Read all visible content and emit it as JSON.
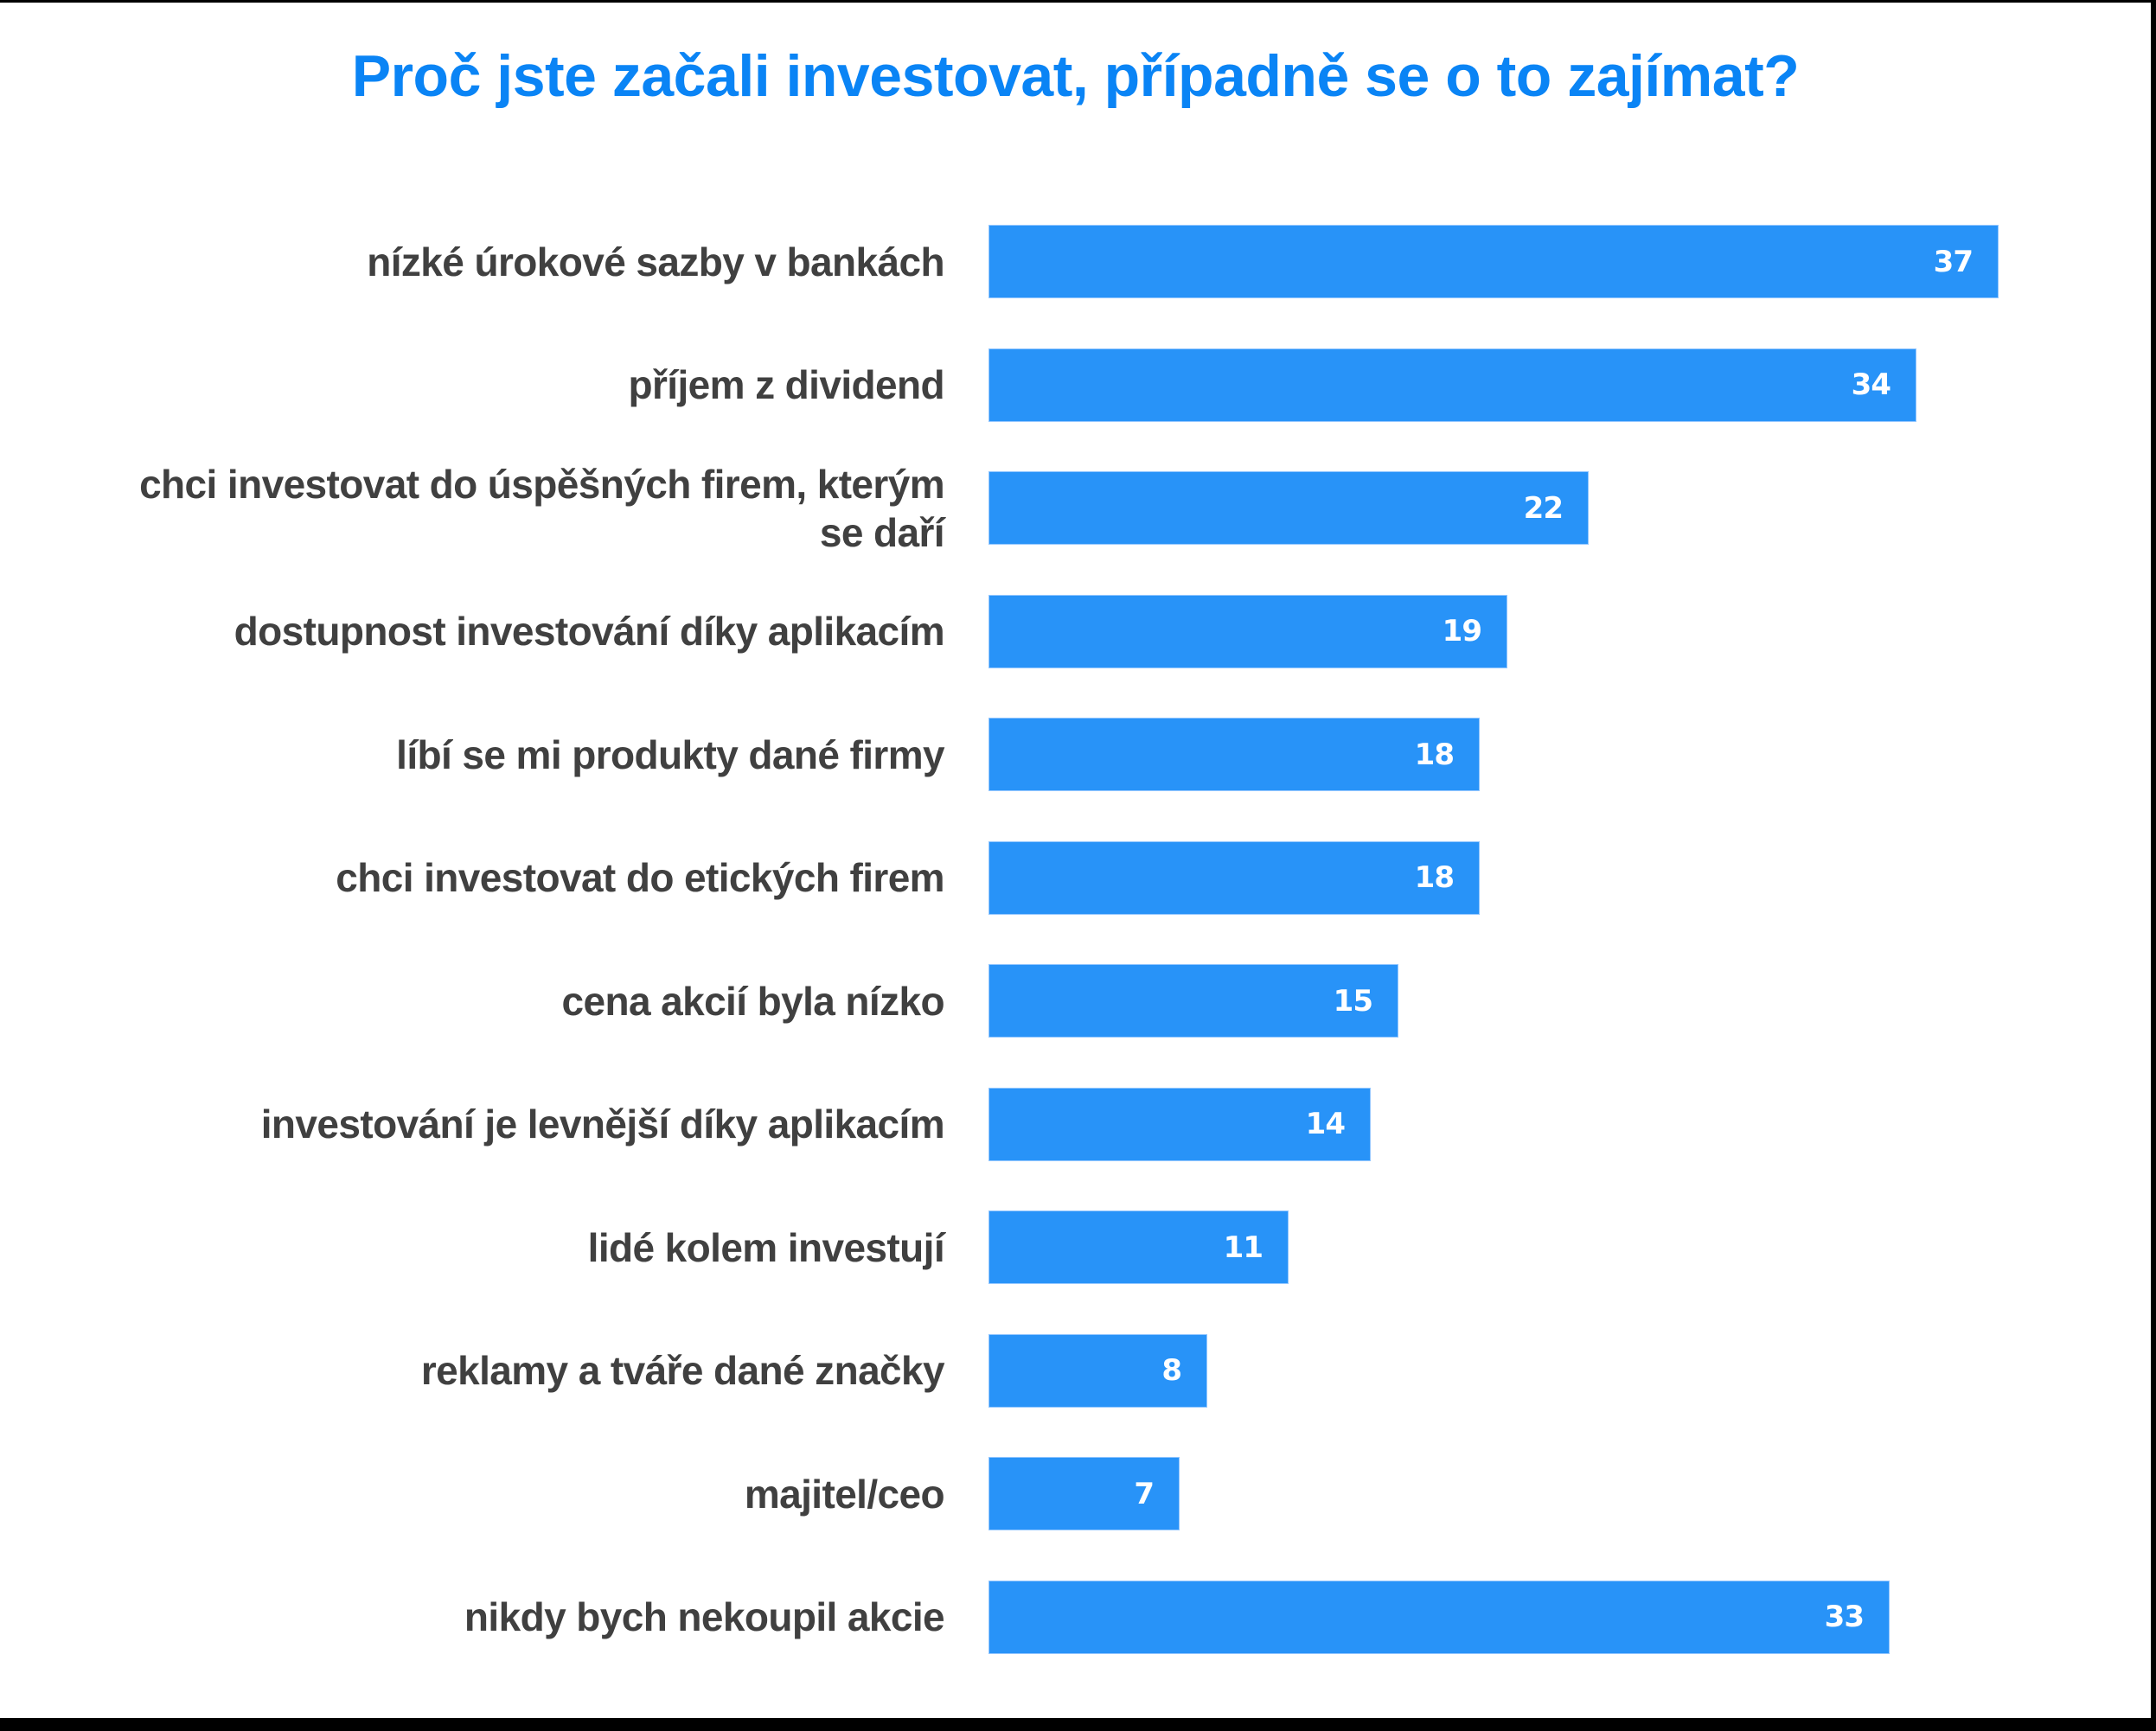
{
  "colors": {
    "title": "#0a84f5",
    "label": "#404040",
    "bar": "#2893f8",
    "value_text": "#ffffff",
    "background": "#ffffff",
    "frame": "#000000"
  },
  "chart": {
    "title": "Proč jste začali investovat, případně se o to zajímat?"
  },
  "rows": [
    {
      "label_lines": [
        "nízké úrokové sazby v bankách"
      ],
      "value": 37,
      "value_label": "37"
    },
    {
      "label_lines": [
        "příjem z dividend"
      ],
      "value": 34,
      "value_label": "34"
    },
    {
      "label_lines": [
        "chci investovat do úspěšných firem, kterým",
        "se daří"
      ],
      "value": 22,
      "value_label": "22"
    },
    {
      "label_lines": [
        "dostupnost investování díky aplikacím"
      ],
      "value": 19,
      "value_label": "19"
    },
    {
      "label_lines": [
        "líbí se mi produkty dané firmy"
      ],
      "value": 18,
      "value_label": "18"
    },
    {
      "label_lines": [
        "chci investovat do etických firem"
      ],
      "value": 18,
      "value_label": "18"
    },
    {
      "label_lines": [
        "cena akcií byla nízko"
      ],
      "value": 15,
      "value_label": "15"
    },
    {
      "label_lines": [
        "investování je levnější díky aplikacím"
      ],
      "value": 14,
      "value_label": "14"
    },
    {
      "label_lines": [
        "lidé kolem investují"
      ],
      "value": 11,
      "value_label": "11"
    },
    {
      "label_lines": [
        "reklamy a tváře dané značky"
      ],
      "value": 8,
      "value_label": "8"
    },
    {
      "label_lines": [
        "majitel/ceo"
      ],
      "value": 7,
      "value_label": "7"
    },
    {
      "label_lines": [
        "nikdy bych nekoupil akcie"
      ],
      "value": 33,
      "value_label": "33"
    }
  ],
  "chart_data": {
    "type": "bar",
    "orientation": "horizontal",
    "title": "Proč jste začali investovat, případně se o to zajímat?",
    "categories": [
      "nízké úrokové sazby v bankách",
      "příjem z dividend",
      "chci investovat do úspěšných firem, kterým se daří",
      "dostupnost investování díky aplikacím",
      "líbí se mi produkty dané firmy",
      "chci investovat do etických firem",
      "cena akcií byla nízko",
      "investování je levnější díky aplikacím",
      "lidé kolem investují",
      "reklamy a tváře dané značky",
      "majitel/ceo",
      "nikdy bych nekoupil akcie"
    ],
    "values": [
      37,
      34,
      22,
      19,
      18,
      18,
      15,
      14,
      11,
      8,
      7,
      33
    ],
    "xlabel": "",
    "ylabel": "",
    "xlim": [
      0,
      37
    ],
    "grid": false,
    "legend": null,
    "data_labels": "inside-end, white"
  }
}
